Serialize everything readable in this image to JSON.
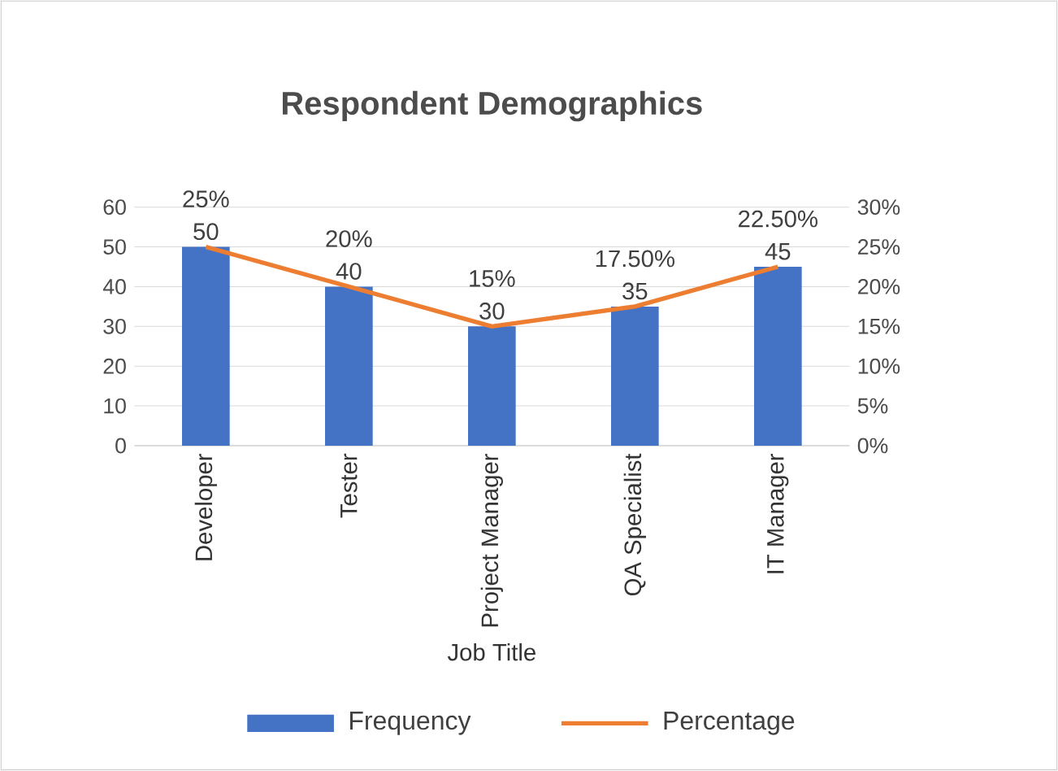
{
  "chart_data": {
    "type": "bar",
    "title": "Respondent Demographics",
    "xlabel": "Job Title",
    "categories": [
      "Developer",
      "Tester",
      "Project Manager",
      "QA Specialist",
      "IT Manager"
    ],
    "series": [
      {
        "name": "Frequency",
        "color": "#4472c4",
        "values": [
          50,
          40,
          30,
          35,
          45
        ],
        "value_labels": [
          "50",
          "40",
          "30",
          "35",
          "45"
        ]
      },
      {
        "name": "Percentage",
        "type": "line",
        "axis": "y2",
        "color": "#ed7d31",
        "values": [
          25,
          20,
          15,
          17.5,
          22.5
        ],
        "value_labels": [
          "25%",
          "20%",
          "15%",
          "17.50%",
          "22.50%"
        ]
      }
    ],
    "ylim": [
      0,
      60
    ],
    "yticks": [
      0,
      10,
      20,
      30,
      40,
      50,
      60
    ],
    "y2lim": [
      0,
      30
    ],
    "y2ticks": [
      {
        "value": 0,
        "label": "0%"
      },
      {
        "value": 5,
        "label": "5%"
      },
      {
        "value": 10,
        "label": "10%"
      },
      {
        "value": 15,
        "label": "15%"
      },
      {
        "value": 20,
        "label": "20%"
      },
      {
        "value": 25,
        "label": "25%"
      },
      {
        "value": 30,
        "label": "30%"
      }
    ],
    "grid": "y",
    "legend": "bottom"
  }
}
